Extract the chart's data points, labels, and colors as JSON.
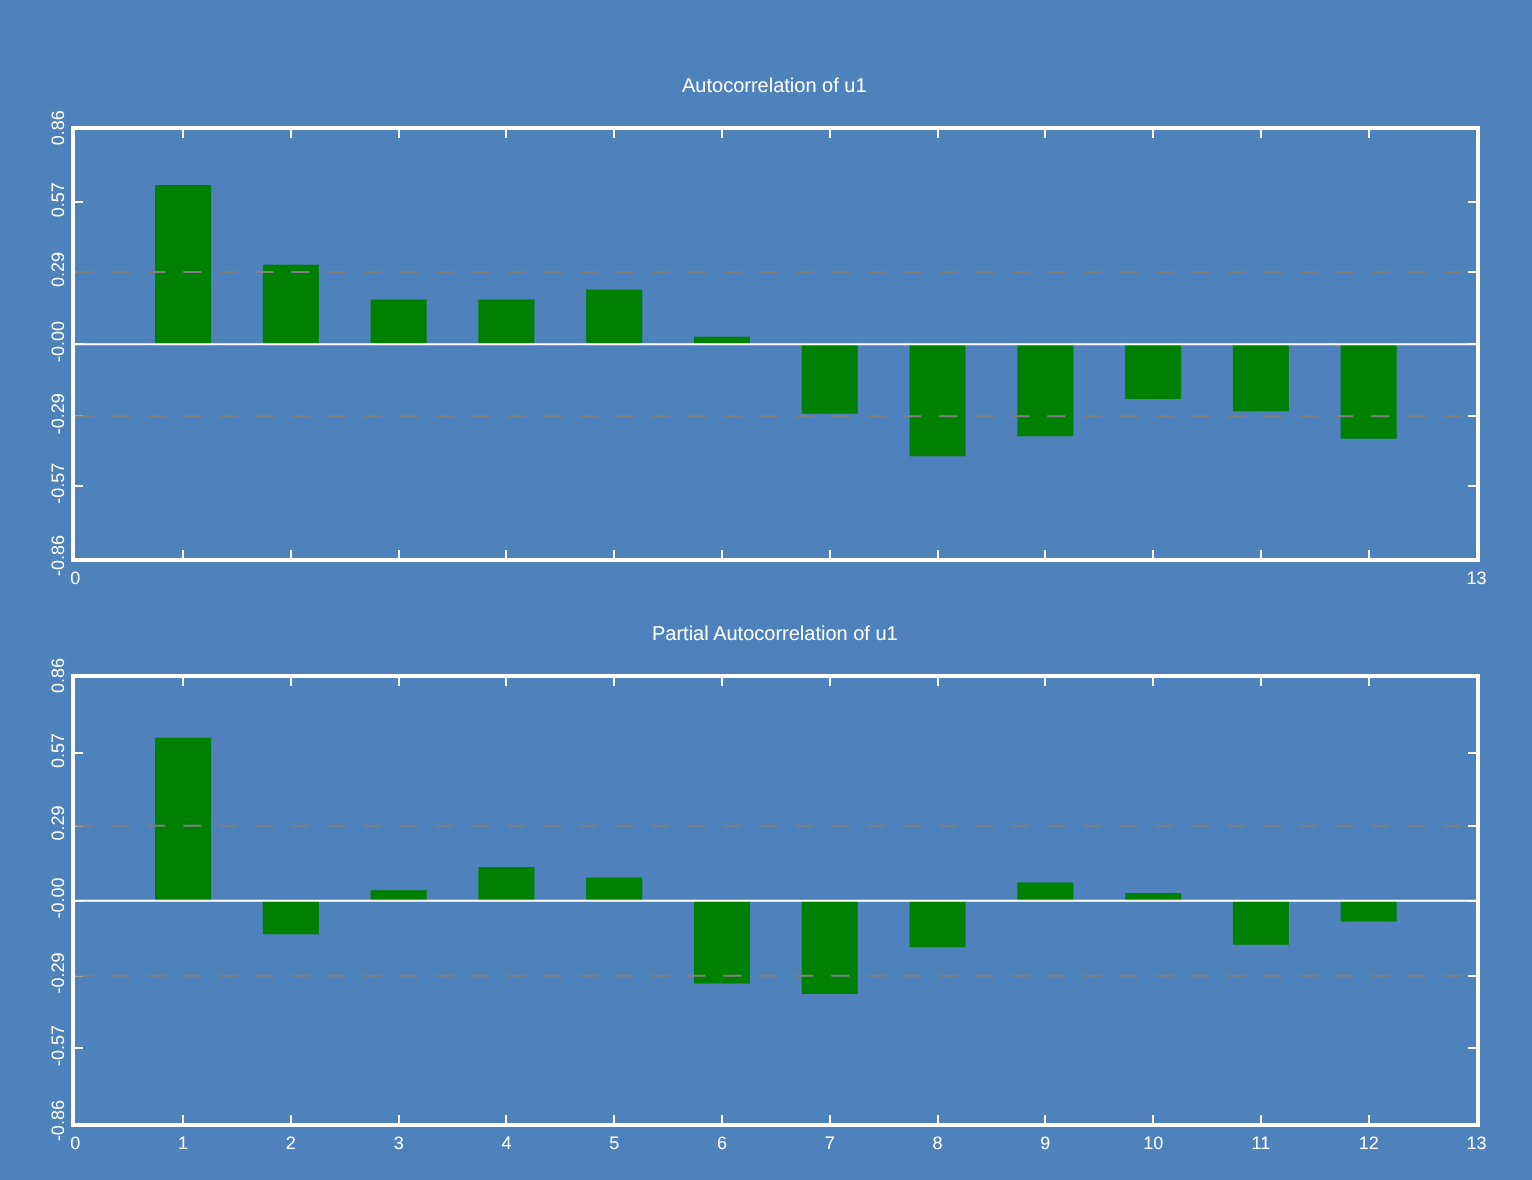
{
  "chart_data": [
    {
      "type": "bar",
      "title": "Autocorrelation of u1",
      "x": [
        1,
        2,
        3,
        4,
        5,
        6,
        7,
        8,
        9,
        10,
        11,
        12
      ],
      "series": [
        {
          "color": "#008000",
          "values": [
            0.64,
            0.32,
            0.18,
            0.18,
            0.22,
            0.03,
            -0.28,
            -0.45,
            -0.37,
            -0.22,
            -0.27,
            -0.38
          ]
        }
      ],
      "xlim": [
        0,
        13
      ],
      "xticks": [
        0,
        {
          "value": 1,
          "label": null
        },
        {
          "value": 2,
          "label": null
        },
        {
          "value": 3,
          "label": null
        },
        {
          "value": 4,
          "label": null
        },
        {
          "value": 5,
          "label": null
        },
        {
          "value": 6,
          "label": null
        },
        {
          "value": 7,
          "label": null
        },
        {
          "value": 8,
          "label": null
        },
        {
          "value": 9,
          "label": null
        },
        {
          "value": 10,
          "label": null
        },
        {
          "value": 11,
          "label": null
        },
        {
          "value": 12,
          "label": null
        },
        13
      ],
      "ylim": [
        -0.86,
        0.86
      ],
      "yticks": [
        {
          "value": -0.86,
          "label": "-0.86"
        },
        {
          "value": -0.57,
          "label": "-0.57"
        },
        {
          "value": -0.29,
          "label": "-0.29"
        },
        {
          "value": 0,
          "label": "-0.00"
        },
        0.29,
        0.57,
        0.86
      ],
      "ref_lines": [
        {
          "axis": "y",
          "value": 0,
          "color": "#ffffff",
          "line_style": "solid"
        },
        {
          "axis": "y",
          "value": 0.29,
          "color": "#808080",
          "line_style": "dashed"
        },
        {
          "axis": "y",
          "value": -0.29,
          "color": "#808080",
          "line_style": "dashed"
        }
      ],
      "grid": false
    },
    {
      "type": "bar",
      "title": "Partial Autocorrelation of u1",
      "x": [
        1,
        2,
        3,
        4,
        5,
        6,
        7,
        8,
        9,
        10,
        11,
        12
      ],
      "series": [
        {
          "color": "#008000",
          "values": [
            0.63,
            -0.13,
            0.04,
            0.13,
            0.09,
            -0.32,
            -0.36,
            -0.18,
            0.07,
            0.03,
            -0.17,
            -0.08
          ]
        }
      ],
      "xlim": [
        0,
        13
      ],
      "xticks": [
        0,
        1,
        2,
        3,
        4,
        5,
        6,
        7,
        8,
        9,
        10,
        11,
        12,
        13
      ],
      "ylim": [
        -0.86,
        0.86
      ],
      "yticks": [
        {
          "value": -0.86,
          "label": "-0.86"
        },
        {
          "value": -0.57,
          "label": "-0.57"
        },
        {
          "value": -0.29,
          "label": "-0.29"
        },
        {
          "value": 0,
          "label": "-0.00"
        },
        0.29,
        0.57,
        0.86
      ],
      "ref_lines": [
        {
          "axis": "y",
          "value": 0,
          "color": "#ffffff",
          "line_style": "solid"
        },
        {
          "axis": "y",
          "value": 0.29,
          "color": "#808080",
          "line_style": "dashed"
        },
        {
          "axis": "y",
          "value": -0.29,
          "color": "#808080",
          "line_style": "dashed"
        }
      ],
      "grid": false
    }
  ]
}
